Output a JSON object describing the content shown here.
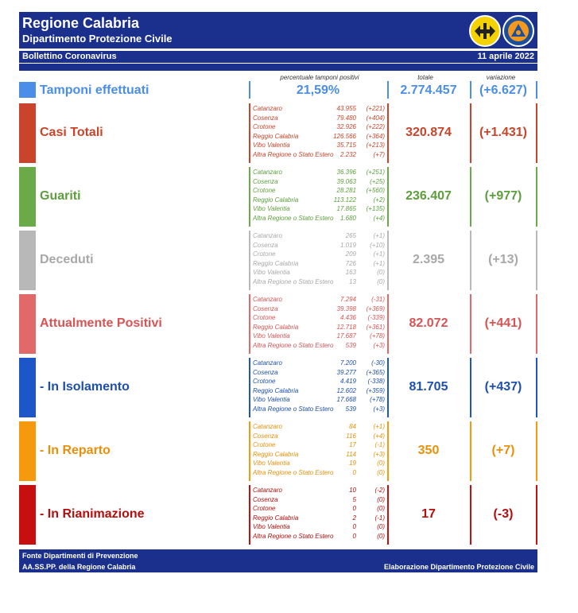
{
  "header": {
    "region": "Regione Calabria",
    "department": "Dipartimento Protezione Civile",
    "bulletin": "Bollettino Coronavirus",
    "date": "11 aprile 2022",
    "logo_left": "calabria-coat-of-arms-icon",
    "logo_right": "protezione-civile-icon"
  },
  "columns": {
    "positivity_label": "percentuale tamponi positivi",
    "total_label": "totale",
    "change_label": "variazione"
  },
  "tamponi": {
    "label": "Tamponi effettuati",
    "positivity": "21,59%",
    "total": "2.774.457",
    "change": "(+6.627)",
    "color": "#4a8ee8"
  },
  "rows": [
    {
      "key": "casi",
      "label": "Casi Totali",
      "color": "#c9442a",
      "text_color": "#c9442a",
      "total": "320.874",
      "change": "(+1.431)",
      "provinces": [
        {
          "name": "Catanzaro",
          "value": "43.955",
          "change": "(+221)"
        },
        {
          "name": "Cosenza",
          "value": "79.480",
          "change": "(+404)"
        },
        {
          "name": "Crotone",
          "value": "32.926",
          "change": "(+222)"
        },
        {
          "name": "Reggio Calabria",
          "value": "126.566",
          "change": "(+364)"
        },
        {
          "name": "Vibo Valentia",
          "value": "35.715",
          "change": "(+213)"
        },
        {
          "name": "Altra Regione o Stato Estero",
          "value": "2.232",
          "change": "(+7)"
        }
      ]
    },
    {
      "key": "guariti",
      "label": "Guariti",
      "color": "#6aaa48",
      "text_color": "#5c9e3c",
      "total": "236.407",
      "change": "(+977)",
      "provinces": [
        {
          "name": "Catanzaro",
          "value": "36.396",
          "change": "(+251)"
        },
        {
          "name": "Cosenza",
          "value": "39.063",
          "change": "(+25)"
        },
        {
          "name": "Crotone",
          "value": "28.281",
          "change": "(+560)"
        },
        {
          "name": "Reggio Calabria",
          "value": "113.122",
          "change": "(+2)"
        },
        {
          "name": "Vibo Valentia",
          "value": "17.865",
          "change": "(+135)"
        },
        {
          "name": "Altra Regione o Stato Estero",
          "value": "1.680",
          "change": "(+4)"
        }
      ]
    },
    {
      "key": "deceduti",
      "label": "Deceduti",
      "color": "#b8b8b8",
      "text_color": "#a8a8a8",
      "total": "2.395",
      "change": "(+13)",
      "provinces": [
        {
          "name": "Catanzaro",
          "value": "265",
          "change": "(+1)"
        },
        {
          "name": "Cosenza",
          "value": "1.019",
          "change": "(+10)"
        },
        {
          "name": "Crotone",
          "value": "209",
          "change": "(+1)"
        },
        {
          "name": "Reggio Calabria",
          "value": "726",
          "change": "(+1)"
        },
        {
          "name": "Vibo Valentia",
          "value": "163",
          "change": "(0)"
        },
        {
          "name": "Altra Regione o Stato Estero",
          "value": "13",
          "change": "(0)"
        }
      ]
    },
    {
      "key": "positivi",
      "label": "Attualmente Positivi",
      "color": "#e06a6a",
      "text_color": "#d65454",
      "total": "82.072",
      "change": "(+441)",
      "provinces": [
        {
          "name": "Catanzaro",
          "value": "7.294",
          "change": "(-31)"
        },
        {
          "name": "Cosenza",
          "value": "39.398",
          "change": "(+369)"
        },
        {
          "name": "Crotone",
          "value": "4.436",
          "change": "(-339)"
        },
        {
          "name": "Reggio Calabria",
          "value": "12.718",
          "change": "(+361)"
        },
        {
          "name": "Vibo Valentia",
          "value": "17.687",
          "change": "(+78)"
        },
        {
          "name": "Altra Regione o Stato Estero",
          "value": "539",
          "change": "(+3)"
        }
      ]
    },
    {
      "key": "isolamento",
      "label": "- In Isolamento",
      "color": "#1d56c8",
      "text_color": "#1d4fae",
      "total": "81.705",
      "change": "(+437)",
      "provinces": [
        {
          "name": "Catanzaro",
          "value": "7.200",
          "change": "(-30)"
        },
        {
          "name": "Cosenza",
          "value": "39.277",
          "change": "(+365)"
        },
        {
          "name": "Crotone",
          "value": "4.419",
          "change": "(-338)"
        },
        {
          "name": "Reggio Calabria",
          "value": "12.602",
          "change": "(+359)"
        },
        {
          "name": "Vibo Valentia",
          "value": "17.668",
          "change": "(+78)"
        },
        {
          "name": "Altra Regione o Stato Estero",
          "value": "539",
          "change": "(+3)"
        }
      ]
    },
    {
      "key": "reparto",
      "label": "- In Reparto",
      "color": "#f59a0c",
      "text_color": "#e8900a",
      "total": "350",
      "change": "(+7)",
      "provinces": [
        {
          "name": "Catanzaro",
          "value": "84",
          "change": "(+1)"
        },
        {
          "name": "Cosenza",
          "value": "116",
          "change": "(+4)"
        },
        {
          "name": "Crotone",
          "value": "17",
          "change": "(-1)"
        },
        {
          "name": "Reggio Calabria",
          "value": "114",
          "change": "(+3)"
        },
        {
          "name": "Vibo Valentia",
          "value": "19",
          "change": "(0)"
        },
        {
          "name": "Altra Regione o Stato Estero",
          "value": "0",
          "change": "(0)"
        }
      ]
    },
    {
      "key": "rianimazione",
      "label": "- In Rianimazione",
      "color": "#c80f0f",
      "text_color": "#b50d0d",
      "total": "17",
      "change": "(-3)",
      "provinces": [
        {
          "name": "Catanzaro",
          "value": "10",
          "change": "(-2)"
        },
        {
          "name": "Cosenza",
          "value": "5",
          "change": "(0)"
        },
        {
          "name": "Crotone",
          "value": "0",
          "change": "(0)"
        },
        {
          "name": "Reggio Calabria",
          "value": "2",
          "change": "(-1)"
        },
        {
          "name": "Vibo Valentia",
          "value": "0",
          "change": "(0)"
        },
        {
          "name": "Altra Regione o Stato Estero",
          "value": "0",
          "change": "(0)"
        }
      ]
    }
  ],
  "footer": {
    "source_line1": "Fonte Dipartimenti di Prevenzione",
    "source_line2": "AA.SS.PP. della Regione Calabria",
    "credit": "Elaborazione Dipartimento Protezione Civile"
  }
}
